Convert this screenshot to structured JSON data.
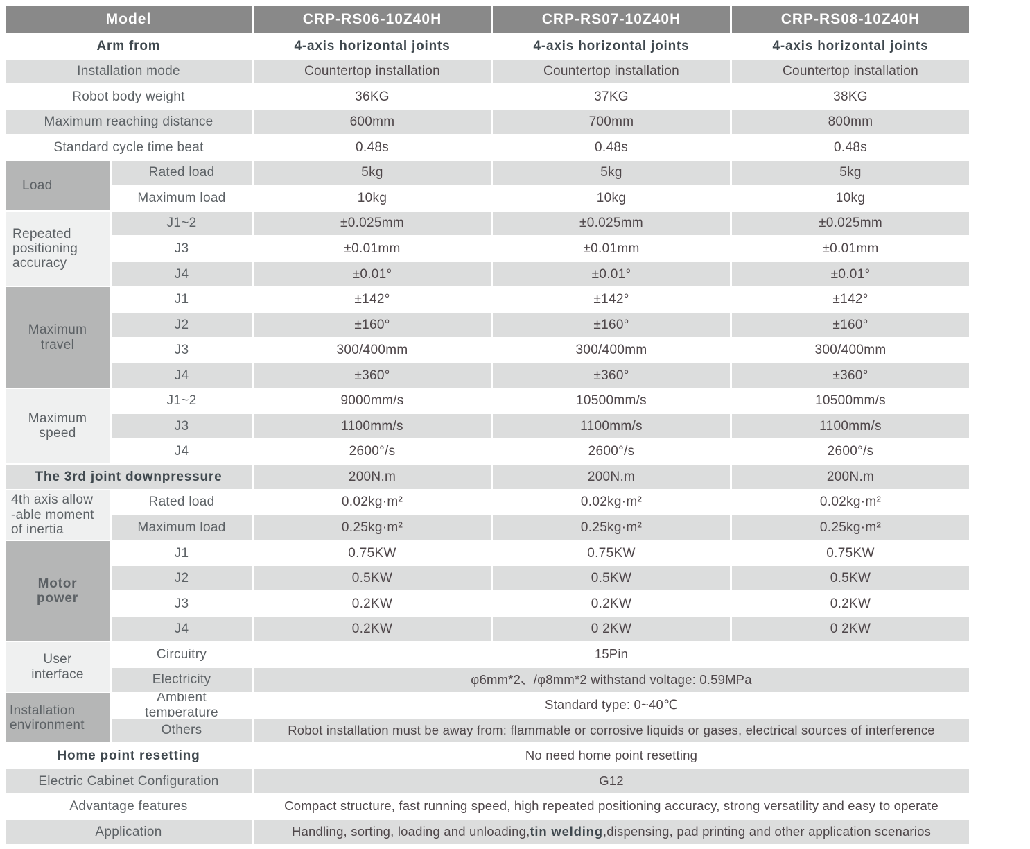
{
  "colors": {
    "header_bg": "#898989",
    "header_text": "#ffffff",
    "row_band": "#dcdddd",
    "group_dark": "#b5b6b6",
    "group_light": "#eff0f0",
    "label_text": "#5c6165",
    "value_text": "#4e4649",
    "emphasis_text": "#3f484e"
  },
  "header": {
    "label": "Model",
    "models": [
      "CRP-RS06-10Z40H",
      "CRP-RS07-10Z40H",
      "CRP-RS08-10Z40H"
    ]
  },
  "rows": [
    {
      "label": "Arm from",
      "labelBold": true,
      "values": [
        "4-axis horizontal joints",
        "4-axis horizontal joints",
        "4-axis horizontal joints"
      ],
      "valuesBold": true
    },
    {
      "label": "Installation mode",
      "band": true,
      "values": [
        "Countertop installation",
        "Countertop installation",
        "Countertop installation"
      ]
    },
    {
      "label": "Robot body weight",
      "values": [
        "36KG",
        "37KG",
        "38KG"
      ]
    },
    {
      "label": "Maximum reaching distance",
      "band": true,
      "values": [
        "600mm",
        "700mm",
        "800mm"
      ]
    },
    {
      "label": "Standard cycle time beat",
      "values": [
        "0.48s",
        "0.48s",
        "0.48s"
      ]
    },
    {
      "group": {
        "text": "Load",
        "rows": 2,
        "tone": "dark",
        "align": "left",
        "pad": 24
      },
      "sub": "Rated load",
      "band": true,
      "values": [
        "5kg",
        "5kg",
        "5kg"
      ]
    },
    {
      "sub": "Maximum load",
      "values": [
        "10kg",
        "10kg",
        "10kg"
      ]
    },
    {
      "group": {
        "text": "Repeated\npositioning\naccuracy",
        "rows": 3,
        "tone": "light",
        "align": "left",
        "pad": 10
      },
      "sub": "J1~2",
      "band": true,
      "values": [
        "±0.025mm",
        "±0.025mm",
        "±0.025mm"
      ]
    },
    {
      "sub": "J3",
      "values": [
        "±0.01mm",
        "±0.01mm",
        "±0.01mm"
      ]
    },
    {
      "sub": "J4",
      "band": true,
      "values": [
        "±0.01°",
        "±0.01°",
        "±0.01°"
      ]
    },
    {
      "group": {
        "text": "Maximum\ntravel",
        "rows": 4,
        "tone": "dark",
        "align": "center"
      },
      "sub": "J1",
      "values": [
        "±142°",
        "±142°",
        "±142°"
      ]
    },
    {
      "sub": "J2",
      "band": true,
      "values": [
        "±160°",
        "±160°",
        "±160°"
      ]
    },
    {
      "sub": "J3",
      "values": [
        "300/400mm",
        "300/400mm",
        "300/400mm"
      ]
    },
    {
      "sub": "J4",
      "band": true,
      "values": [
        "±360°",
        "±360°",
        "±360°"
      ]
    },
    {
      "group": {
        "text": "Maximum\nspeed",
        "rows": 3,
        "tone": "light",
        "align": "center"
      },
      "sub": "J1~2",
      "values": [
        "9000mm/s",
        "10500mm/s",
        "10500mm/s"
      ]
    },
    {
      "sub": "J3",
      "band": true,
      "values": [
        "1100mm/s",
        "1100mm/s",
        "1100mm/s"
      ]
    },
    {
      "sub": "J4",
      "values": [
        "2600°/s",
        "2600°/s",
        "2600°/s"
      ]
    },
    {
      "label": "The 3rd joint downpressure",
      "labelBold": true,
      "band": true,
      "values": [
        "200N.m",
        "200N.m",
        "200N.m"
      ]
    },
    {
      "group": {
        "text": "4th axis allow\n-able moment\nof inertia",
        "rows": 2,
        "tone": "light",
        "align": "left",
        "pad": 8
      },
      "sub": "Rated load",
      "values": [
        "0.02kg·m²",
        "0.02kg·m²",
        "0.02kg·m²"
      ]
    },
    {
      "sub": "Maximum load",
      "band": true,
      "values": [
        "0.25kg·m²",
        "0.25kg·m²",
        "0.25kg·m²"
      ]
    },
    {
      "group": {
        "text": "Motor\npower",
        "rows": 4,
        "tone": "dark",
        "align": "center",
        "bold": true
      },
      "sub": "J1",
      "values": [
        "0.75KW",
        "0.75KW",
        "0.75KW"
      ]
    },
    {
      "sub": "J2",
      "band": true,
      "values": [
        "0.5KW",
        "0.5KW",
        "0.5KW"
      ]
    },
    {
      "sub": "J3",
      "values": [
        "0.2KW",
        "0.2KW",
        "0.2KW"
      ]
    },
    {
      "sub": "J4",
      "band": true,
      "values": [
        "0.2KW",
        "0 2KW",
        "0 2KW"
      ]
    },
    {
      "group": {
        "text": "User\ninterface",
        "rows": 2,
        "tone": "light",
        "align": "center"
      },
      "sub": "Circuitry",
      "span": "15Pin"
    },
    {
      "sub": "Electricity",
      "band": true,
      "span": "φ6mm*2、/φ8mm*2  withstand voltage: 0.59MPa"
    },
    {
      "group": {
        "text": "Installation\nenvironment",
        "rows": 2,
        "tone": "dark",
        "align": "left",
        "pad": 6
      },
      "sub": "Ambient\ntemperature",
      "span": "Standard type:  0~40℃"
    },
    {
      "sub": "Others",
      "band": true,
      "span": "Robot installation must be away from: flammable or corrosive liquids or gases, electrical sources of interference"
    },
    {
      "label": "Home point resetting",
      "labelBold": true,
      "span": "No need home point resetting"
    },
    {
      "label": "Electric Cabinet Configuration",
      "band": true,
      "span": "G12"
    },
    {
      "label": "Advantage features",
      "span": "Compact structure, fast running speed, high repeated positioning accuracy, strong versatility and easy to operate"
    },
    {
      "label": "Application",
      "band": true,
      "spanParts": [
        {
          "text": "Handling, sorting, loading and unloading,"
        },
        {
          "text": "tin welding",
          "bold": true
        },
        {
          "text": ",dispensing, pad printing and other application scenarios"
        }
      ]
    }
  ]
}
